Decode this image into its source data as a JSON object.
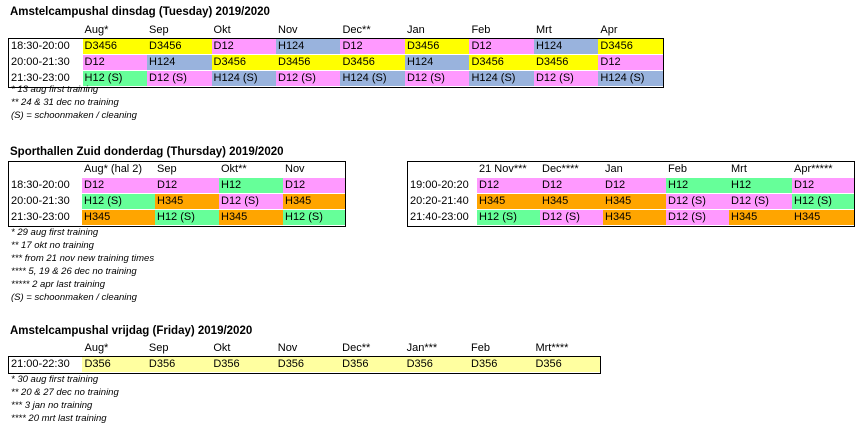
{
  "colors": {
    "D3456": "#ffff00",
    "D12": "#ff99ff",
    "H124": "#99b3dd",
    "H12": "#66ff99",
    "H345": "#ffa500",
    "D356": "#ffffa0"
  },
  "tuesday": {
    "title": "Amstelcampushal dinsdag (Tuesday) 2019/2020",
    "headers": [
      "",
      "Aug*",
      "Sep",
      "Okt",
      "Nov",
      "Dec**",
      "Jan",
      "Feb",
      "Mrt",
      "Apr"
    ],
    "rows": [
      {
        "time": "18:30-20:00",
        "cells": [
          "D3456",
          "D3456",
          "D12",
          "H124",
          "D12",
          "D3456",
          "D12",
          "H124",
          "D3456"
        ]
      },
      {
        "time": "20:00-21:30",
        "cells": [
          "D12",
          "H124",
          "D3456",
          "D3456",
          "D3456",
          "H124",
          "D3456",
          "D3456",
          "D12"
        ]
      },
      {
        "time": "21:30-23:00",
        "cells": [
          "H12 (S)",
          "D12 (S)",
          "H124 (S)",
          "D12 (S)",
          "H124 (S)",
          "D12 (S)",
          "H124 (S)",
          "D12 (S)",
          "H124 (S)"
        ]
      }
    ],
    "notes": [
      "* 13 aug first training",
      "** 24 & 31 dec no training",
      "(S) = schoonmaken / cleaning"
    ]
  },
  "thursday": {
    "title": "Sporthallen Zuid donderdag (Thursday) 2019/2020",
    "left": {
      "headers": [
        "",
        "Aug* (hal 2)",
        "Sep",
        "Okt**",
        "Nov"
      ],
      "rows": [
        {
          "time": "18:30-20:00",
          "cells": [
            "D12",
            "D12",
            "H12",
            "D12"
          ]
        },
        {
          "time": "20:00-21:30",
          "cells": [
            "H12 (S)",
            "H345",
            "D12 (S)",
            "H345"
          ]
        },
        {
          "time": "21:30-23:00",
          "cells": [
            "H345",
            "H12 (S)",
            "H345",
            "H12 (S)"
          ]
        }
      ]
    },
    "right": {
      "headers": [
        "",
        "21 Nov***",
        "Dec****",
        "Jan",
        "Feb",
        "Mrt",
        "Apr*****"
      ],
      "rows": [
        {
          "time": "19:00-20:20",
          "cells": [
            "D12",
            "D12",
            "D12",
            "H12",
            "H12",
            "D12"
          ]
        },
        {
          "time": "20:20-21:40",
          "cells": [
            "H345",
            "H345",
            "H345",
            "D12 (S)",
            "D12 (S)",
            "H12 (S)"
          ]
        },
        {
          "time": "21:40-23:00",
          "cells": [
            "H12 (S)",
            "D12 (S)",
            "H345",
            "D12 (S)",
            "H345",
            "H345"
          ]
        }
      ]
    },
    "notes": [
      "* 29 aug first training",
      "** 17 okt no training",
      "*** from 21 nov new training times",
      "**** 5, 19 & 26 dec no training",
      "***** 2 apr last training",
      "(S) = schoonmaken / cleaning"
    ]
  },
  "friday": {
    "title": "Amstelcampushal vrijdag (Friday) 2019/2020",
    "headers": [
      "",
      "Aug*",
      "Sep",
      "Okt",
      "Nov",
      "Dec**",
      "Jan***",
      "Feb",
      "Mrt****"
    ],
    "rows": [
      {
        "time": "21:00-22:30",
        "cells": [
          "D356",
          "D356",
          "D356",
          "D356",
          "D356",
          "D356",
          "D356",
          "D356"
        ]
      }
    ],
    "notes": [
      "* 30 aug first training",
      "** 20 & 27 dec no training",
      "*** 3 jan no training",
      "**** 20 mrt last training"
    ]
  }
}
